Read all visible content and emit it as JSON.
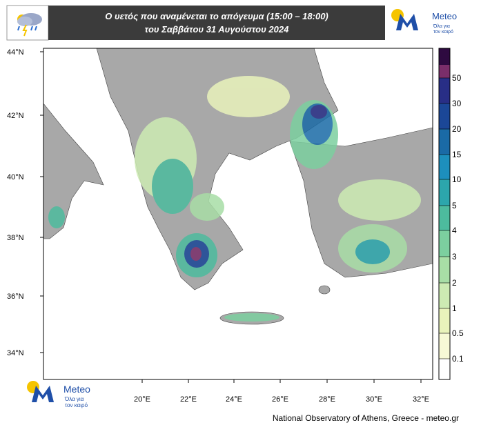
{
  "header": {
    "title_line1": "Ο υετός που αναμένεται το απόγευμα (15:00 – 18:00)",
    "title_line2": "του Σαββάτου 31 Αυγούστου 2024"
  },
  "logo": {
    "name": "Meteo",
    "tagline_line1": "Όλα για",
    "tagline_line2": "τον καιρό"
  },
  "map": {
    "lat_labels": [
      "44°N",
      "42°N",
      "40°N",
      "38°N",
      "36°N",
      "34°N"
    ],
    "lon_labels": [
      "20°E",
      "22°E",
      "24°E",
      "26°E",
      "28°E",
      "30°E",
      "32°E"
    ]
  },
  "legend": {
    "levels": [
      0.1,
      0.5,
      1,
      2,
      3,
      4,
      5,
      10,
      15,
      20,
      30,
      50
    ],
    "colors": [
      "#ffffff",
      "#f7f9d6",
      "#e9f3bb",
      "#cdebb3",
      "#a8dea6",
      "#7ccf9f",
      "#4dbb9e",
      "#2ca6ac",
      "#1d8fbd",
      "#1a6aa6",
      "#1b4797",
      "#282e86",
      "#7a2e6a",
      "#2e0a40"
    ]
  },
  "footer": "National Observatory of Athens, Greece - meteo.gr"
}
